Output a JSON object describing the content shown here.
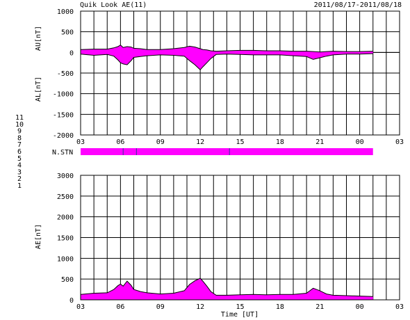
{
  "header": {
    "title": "Quik Look AE(11)",
    "date_range": "2011/08/17-2011/08/18"
  },
  "station_legend": [
    {
      "label": "11",
      "color": "#33d6d6"
    },
    {
      "label": "10",
      "color": "#ff00ff"
    },
    {
      "label": "9",
      "color": "#2222cc"
    },
    {
      "label": "8",
      "color": "#dddd33"
    },
    {
      "label": "7",
      "color": "#b0b0b0"
    },
    {
      "label": "6",
      "color": "#dd2222"
    },
    {
      "label": "5",
      "color": "#cccccc"
    },
    {
      "label": "4",
      "color": "#aaaaaa"
    },
    {
      "label": "3",
      "color": "#33cccc"
    },
    {
      "label": "2",
      "color": "#cc33cc"
    },
    {
      "label": "1",
      "color": "#2222cc"
    }
  ],
  "colors": {
    "fill": "#ff00ff",
    "trace": "#000000",
    "station_bar": "#ff00ff",
    "station_tick": "#333399"
  },
  "chart_data": [
    {
      "type": "area",
      "panel": "AU/AL",
      "ylabel_top": "AU[nT]",
      "ylabel_bottom": "AL[nT]",
      "ylim": [
        -2000,
        1000
      ],
      "yticks": [
        1000,
        500,
        0,
        -500,
        -1000,
        -1500,
        -2000
      ],
      "xlim": [
        3,
        27
      ],
      "xticks": [
        "03",
        "06",
        "09",
        "12",
        "15",
        "18",
        "21",
        "00",
        "03"
      ],
      "grid": true,
      "x_hours": [
        3.0,
        4.0,
        5.0,
        5.5,
        5.8,
        6.0,
        6.2,
        6.5,
        6.8,
        7.0,
        7.5,
        8.0,
        9.0,
        10.0,
        10.8,
        11.2,
        11.6,
        12.0,
        12.2,
        12.5,
        12.8,
        13.2,
        14.0,
        15.0,
        16.0,
        17.0,
        18.0,
        19.0,
        20.0,
        20.5,
        21.0,
        21.5,
        22.0,
        23.0,
        24.0,
        25.0
      ],
      "au": [
        70,
        80,
        80,
        110,
        140,
        180,
        120,
        140,
        130,
        100,
        90,
        70,
        70,
        90,
        120,
        150,
        130,
        90,
        70,
        60,
        40,
        30,
        40,
        50,
        50,
        40,
        40,
        30,
        30,
        20,
        10,
        20,
        30,
        20,
        20,
        30
      ],
      "al": [
        -40,
        -70,
        -50,
        -90,
        -180,
        -250,
        -280,
        -300,
        -200,
        -120,
        -100,
        -80,
        -60,
        -70,
        -90,
        -200,
        -300,
        -420,
        -350,
        -250,
        -150,
        -50,
        -40,
        -50,
        -60,
        -60,
        -60,
        -80,
        -100,
        -170,
        -130,
        -90,
        -60,
        -40,
        -40,
        -30
      ]
    },
    {
      "type": "area",
      "panel": "AE",
      "ylabel": "AE[nT]",
      "xlabel": "Time [UT]",
      "ylim": [
        0,
        3000
      ],
      "yticks": [
        3000,
        2500,
        2000,
        1500,
        1000,
        500,
        0
      ],
      "xlim": [
        3,
        27
      ],
      "xticks": [
        "03",
        "06",
        "09",
        "12",
        "15",
        "18",
        "21",
        "00",
        "03"
      ],
      "grid": true,
      "x_hours": [
        3.0,
        4.0,
        5.0,
        5.5,
        5.8,
        6.0,
        6.2,
        6.5,
        6.8,
        7.0,
        7.5,
        8.0,
        9.0,
        10.0,
        10.8,
        11.2,
        11.6,
        12.0,
        12.2,
        12.5,
        12.8,
        13.2,
        14.0,
        15.0,
        16.0,
        17.0,
        18.0,
        19.0,
        20.0,
        20.5,
        21.0,
        21.5,
        22.0,
        23.0,
        24.0,
        25.0
      ],
      "values": [
        130,
        160,
        170,
        250,
        340,
        380,
        330,
        450,
        350,
        250,
        200,
        170,
        140,
        160,
        220,
        370,
        460,
        520,
        450,
        330,
        200,
        110,
        110,
        120,
        130,
        120,
        130,
        130,
        160,
        280,
        220,
        140,
        110,
        100,
        90,
        80
      ]
    }
  ],
  "station_bar": {
    "label": "N.STN",
    "start_hour": 3.0,
    "end_hour": 25.0,
    "dropout_hours": [
      6.2,
      7.2,
      14.2
    ]
  }
}
